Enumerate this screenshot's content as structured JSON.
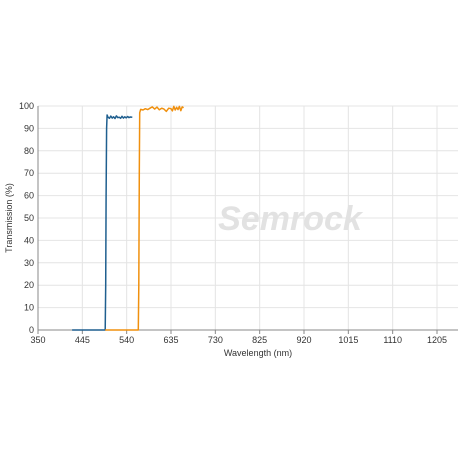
{
  "chart_data": {
    "type": "line",
    "title": "",
    "xlabel": "Wavelength (nm)",
    "ylabel": "Transmission (%)",
    "xlim": [
      350,
      1250
    ],
    "ylim": [
      0,
      100
    ],
    "x_ticks": [
      350,
      445,
      540,
      635,
      730,
      825,
      920,
      1015,
      1110,
      1205
    ],
    "y_ticks": [
      0,
      10,
      20,
      30,
      40,
      50,
      60,
      70,
      80,
      90,
      100
    ],
    "grid": true,
    "legend": "none",
    "watermark": "Semrock",
    "series": [
      {
        "color": "#1f5f8f",
        "x": [
          423,
          494,
          495,
          496,
          497,
          498,
          500,
          503,
          506,
          509,
          512,
          515,
          518,
          521,
          524,
          527,
          530,
          533,
          536,
          539,
          542,
          545,
          548,
          552
        ],
        "y": [
          0,
          0,
          20,
          60,
          90,
          96,
          95,
          94.5,
          95.5,
          94.6,
          95.2,
          94.4,
          95.6,
          94.8,
          95,
          94.5,
          95.4,
          94.6,
          95.2,
          94.7,
          95.3,
          94.8,
          95.1,
          95
        ]
      },
      {
        "color": "#f0900e",
        "x": [
          494,
          565,
          566,
          567,
          568,
          570,
          575,
          580,
          585,
          590,
          595,
          600,
          605,
          610,
          615,
          620,
          625,
          630,
          635,
          638,
          641,
          644,
          647,
          650,
          653,
          656,
          659,
          662
        ],
        "y": [
          0,
          0,
          20,
          70,
          97,
          98.5,
          98.2,
          98.8,
          98.4,
          99,
          99.6,
          98.6,
          99.5,
          98.3,
          99,
          98.6,
          97.6,
          99,
          98.8,
          97.8,
          99.8,
          98.2,
          99.4,
          98.4,
          99.8,
          97.9,
          99.6,
          99.2
        ]
      }
    ]
  }
}
